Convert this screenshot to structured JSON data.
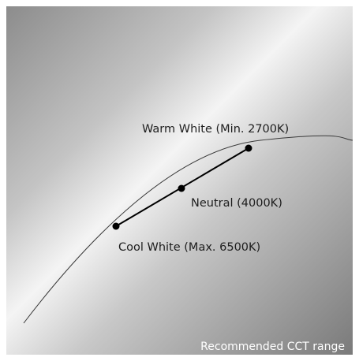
{
  "points": [
    {
      "label": "Warm White (Min. 2700K)"
    },
    {
      "label": "Neutral (4000K)"
    },
    {
      "label": "Cool White (Max. 6500K)"
    }
  ],
  "caption": "Recommended CCT range"
}
